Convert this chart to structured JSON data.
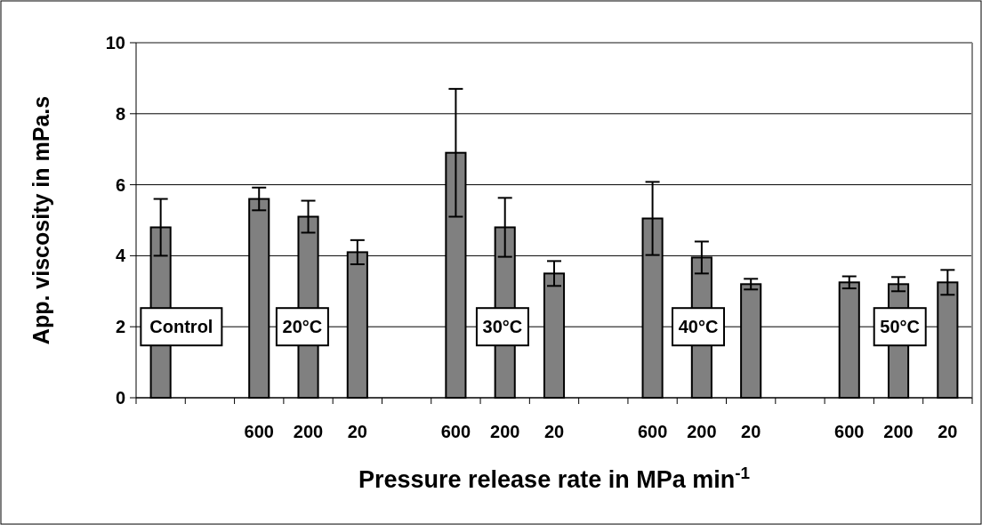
{
  "chart_data": {
    "type": "bar",
    "xlabel": "Pressure release rate in MPa min$^{-1}$",
    "ylabel": "App. viscosity in mPa.s",
    "categories": [
      null,
      null,
      "600",
      "200",
      "20",
      null,
      "600",
      "200",
      "20",
      null,
      "600",
      "200",
      "20",
      null,
      "600",
      "200",
      "20"
    ],
    "values": [
      4.8,
      null,
      5.6,
      5.1,
      4.1,
      null,
      6.9,
      4.8,
      3.5,
      null,
      5.05,
      3.95,
      3.2,
      null,
      3.25,
      3.2,
      3.25
    ],
    "errors": [
      0.8,
      null,
      0.32,
      0.45,
      0.34,
      null,
      1.8,
      0.83,
      0.35,
      null,
      1.03,
      0.45,
      0.15,
      null,
      0.17,
      0.2,
      0.35
    ],
    "color": "#808080",
    "ylim": [
      0,
      10
    ],
    "yticks": [
      0,
      2,
      4,
      6,
      8,
      10
    ],
    "grid": "y",
    "annotations": [
      "Control",
      "20°C",
      "30°C",
      "40°C",
      "50°C"
    ]
  }
}
